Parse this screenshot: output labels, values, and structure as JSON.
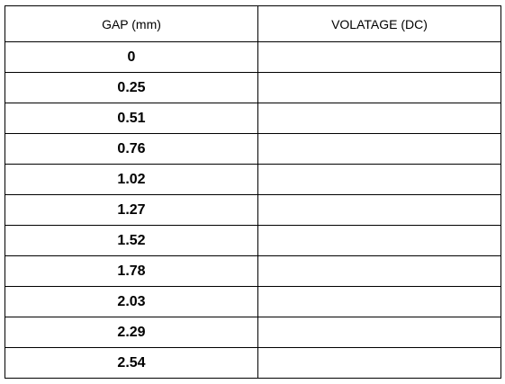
{
  "table": {
    "headers": [
      "GAP (mm)",
      "VOLATAGE (DC)"
    ],
    "rows": [
      "0",
      "0.25",
      "0.51",
      "0.76",
      "1.02",
      "1.27",
      "1.52",
      "1.78",
      "2.03",
      "2.29",
      "2.54"
    ]
  }
}
